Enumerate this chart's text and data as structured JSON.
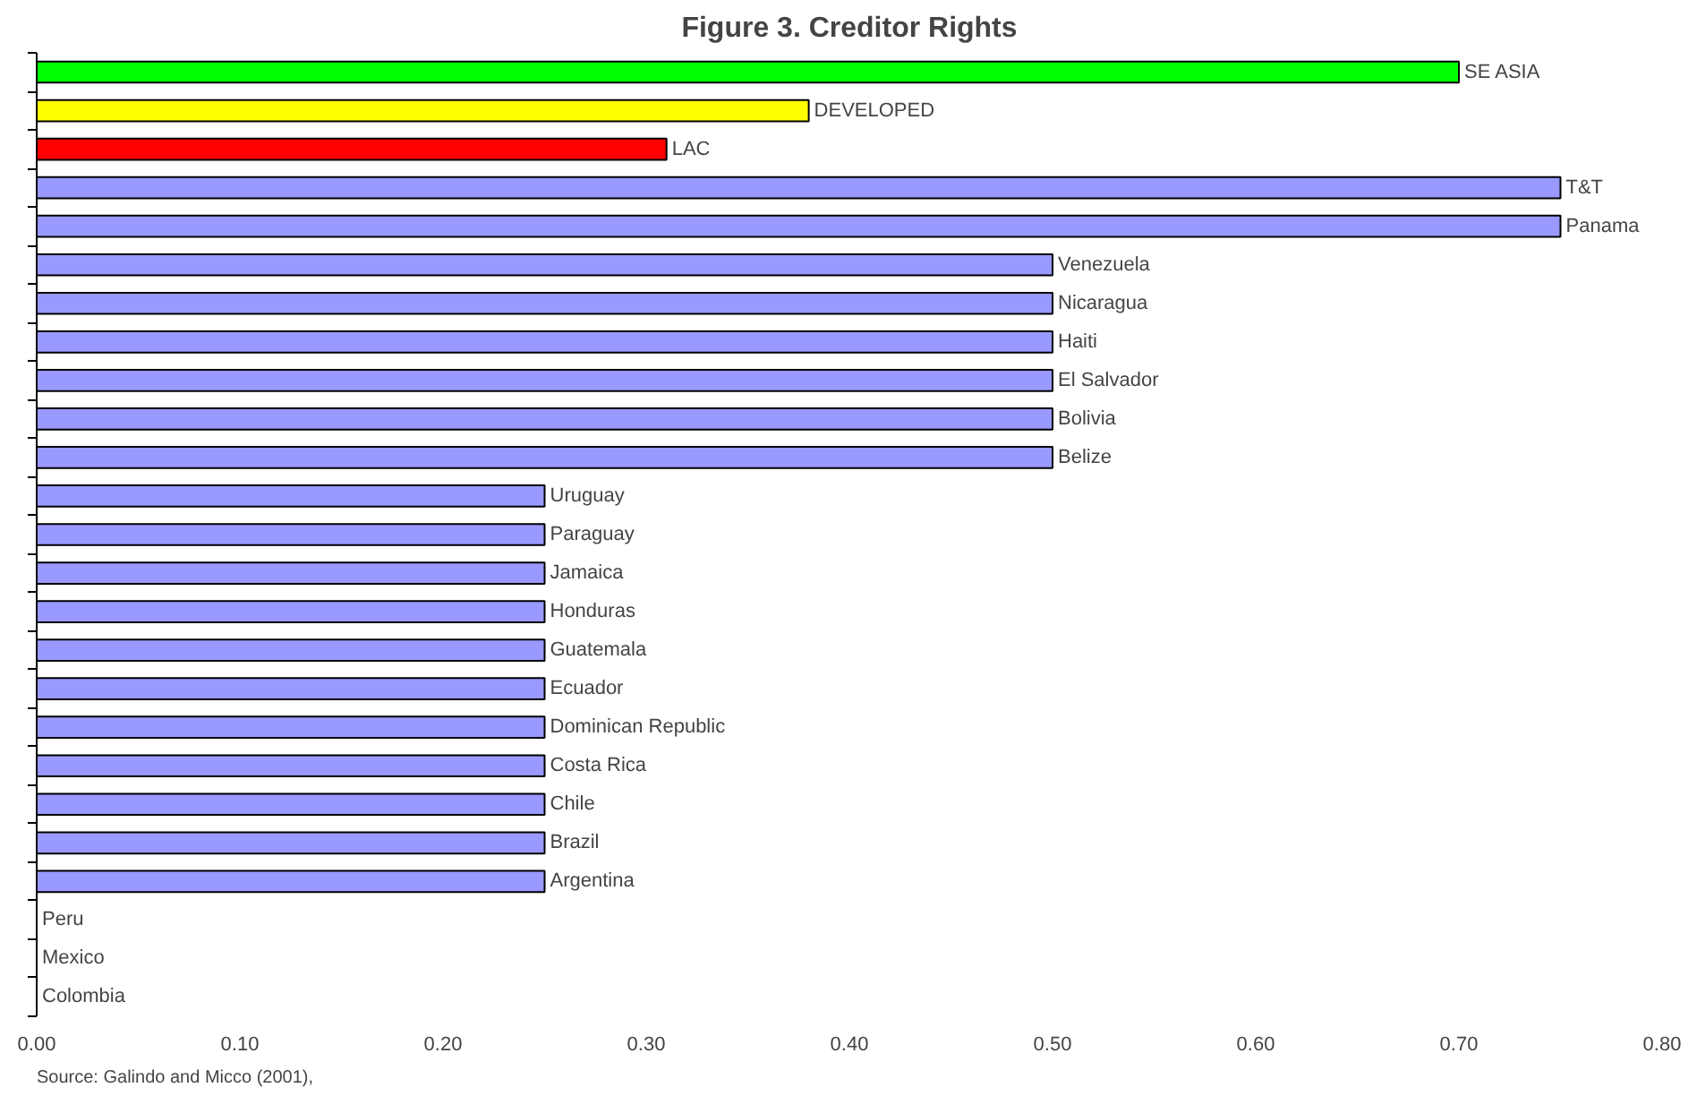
{
  "chart_data": {
    "type": "bar",
    "orientation": "horizontal",
    "title": "Figure 3. Creditor Rights",
    "categories": [
      "SE ASIA",
      "DEVELOPED",
      "LAC",
      "T&T",
      "Panama",
      "Venezuela",
      "Nicaragua",
      "Haiti",
      "El Salvador",
      "Bolivia",
      "Belize",
      "Uruguay",
      "Paraguay",
      "Jamaica",
      "Honduras",
      "Guatemala",
      "Ecuador",
      "Dominican Republic",
      "Costa Rica",
      "Chile",
      "Brazil",
      "Argentina",
      "Peru",
      "Mexico",
      "Colombia"
    ],
    "values": [
      0.7,
      0.38,
      0.31,
      0.75,
      0.75,
      0.5,
      0.5,
      0.5,
      0.5,
      0.5,
      0.5,
      0.25,
      0.25,
      0.25,
      0.25,
      0.25,
      0.25,
      0.25,
      0.25,
      0.25,
      0.25,
      0.25,
      0,
      0,
      0
    ],
    "colors": [
      "#00ff00",
      "#ffff00",
      "#ff0000",
      "#9999ff",
      "#9999ff",
      "#9999ff",
      "#9999ff",
      "#9999ff",
      "#9999ff",
      "#9999ff",
      "#9999ff",
      "#9999ff",
      "#9999ff",
      "#9999ff",
      "#9999ff",
      "#9999ff",
      "#9999ff",
      "#9999ff",
      "#9999ff",
      "#9999ff",
      "#9999ff",
      "#9999ff",
      "#9999ff",
      "#9999ff",
      "#9999ff"
    ],
    "xlim": [
      0,
      0.8
    ],
    "xticks": [
      {
        "value": 0,
        "label": "0.00"
      },
      {
        "value": 0.1,
        "label": "0.10"
      },
      {
        "value": 0.2,
        "label": "0.20"
      },
      {
        "value": 0.3,
        "label": "0.30"
      },
      {
        "value": 0.4,
        "label": "0.40"
      },
      {
        "value": 0.5,
        "label": "0.50"
      },
      {
        "value": 0.6,
        "label": "0.60"
      },
      {
        "value": 0.7,
        "label": "0.70"
      },
      {
        "value": 0.8,
        "label": "0.80"
      }
    ],
    "tick_labels": "x",
    "grid": false,
    "annotations": [
      "Source: Galindo and Micco (2001),"
    ]
  }
}
